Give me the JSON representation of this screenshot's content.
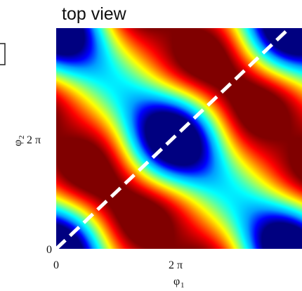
{
  "chart_data": {
    "type": "heatmap",
    "title": "top view",
    "xlabel": "φ",
    "xlabel_subscript": "1",
    "ylabel": "φ",
    "ylabel_subscript": "2",
    "x_ticks": [
      "0",
      "2 π"
    ],
    "y_ticks": [
      "0",
      "2 π"
    ],
    "xlim": [
      0,
      12.56
    ],
    "ylim": [
      0,
      12.56
    ],
    "colormap": "jet",
    "colormap_stops": [
      "#000080",
      "#0000ff",
      "#00a0ff",
      "#00ffff",
      "#80ff80",
      "#ffff00",
      "#ff8000",
      "#ff0000",
      "#800000"
    ],
    "peaks": [
      {
        "x": 3.14,
        "y": 3.14
      },
      {
        "x": 9.42,
        "y": 3.14
      },
      {
        "x": 3.14,
        "y": 9.42
      },
      {
        "x": 9.42,
        "y": 9.42
      }
    ],
    "diagonal_line": {
      "x": [
        0,
        12.56
      ],
      "y": [
        0,
        12.56
      ],
      "style": "dashed",
      "color": "#ffffff"
    }
  }
}
